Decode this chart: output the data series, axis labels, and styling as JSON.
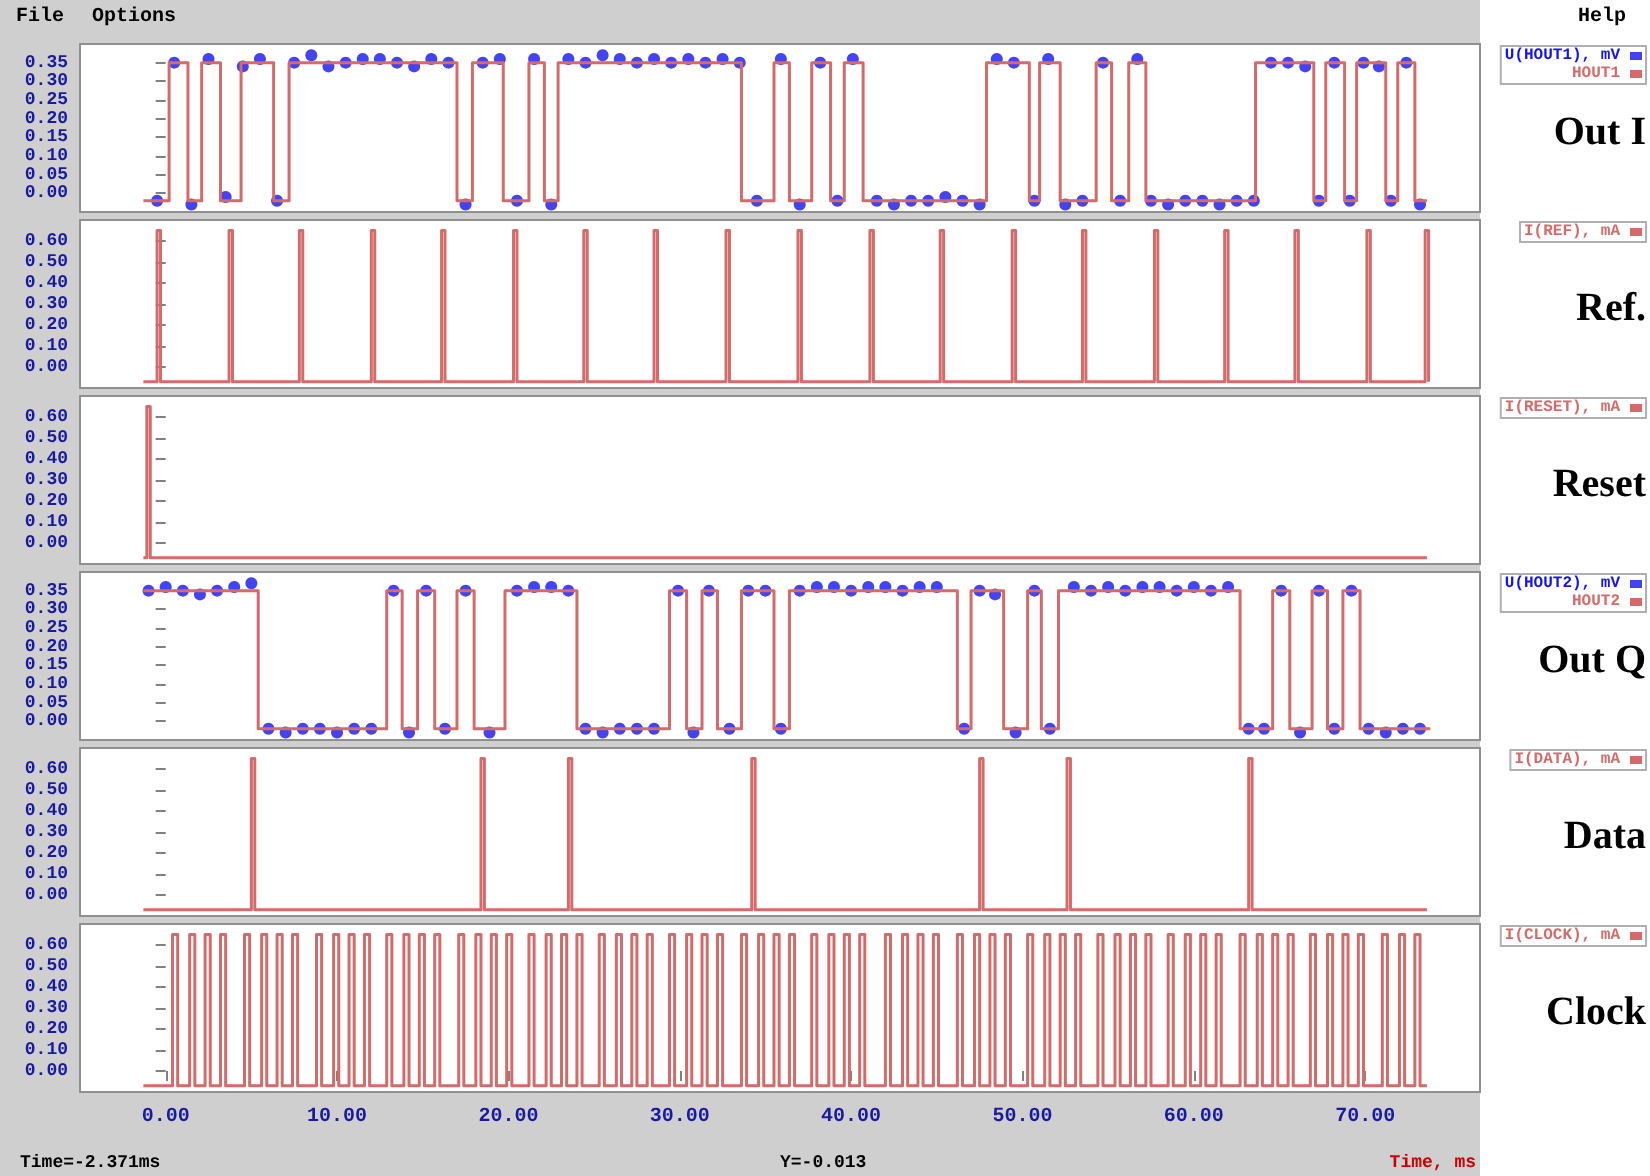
{
  "chart_data": [
    {
      "type": "step",
      "ylabel": "Out I",
      "annotations": [
        "File",
        "Options",
        "Help"
      ],
      "legend": "top right",
      "tick_labels": "y",
      "xlim": [
        -5,
        76.7
      ],
      "ylim": [
        -0.05,
        0.4
      ],
      "yticks": [
        {
          "value": 0,
          "label": "0.00"
        },
        {
          "value": 0.05,
          "label": "0.05"
        },
        {
          "value": 0.1,
          "label": "0.10"
        },
        {
          "value": 0.15,
          "label": "0.15"
        },
        {
          "value": 0.2,
          "label": "0.20"
        },
        {
          "value": 0.25,
          "label": "0.25"
        },
        {
          "value": 0.3,
          "label": "0.30"
        },
        {
          "value": 0.35,
          "label": "0.35"
        }
      ],
      "series": [
        {
          "name": "U(HOUT1), mV",
          "type": "scatter",
          "marker": "circle",
          "color": "#1414ee",
          "x": [
            -0.5,
            0.5,
            1.5,
            2.5,
            3.5,
            4.5,
            5.5,
            6.5,
            7.5,
            8.5,
            9.5,
            10.5,
            11.5,
            12.5,
            13.5,
            14.5,
            15.5,
            16.5,
            17.5,
            18.5,
            19.5,
            20.5,
            21.5,
            22.5,
            23.5,
            24.5,
            25.5,
            26.5,
            27.5,
            28.5,
            29.5,
            30.5,
            31.5,
            32.5,
            33.5,
            34.5,
            35.9,
            37.0,
            38.2,
            39.2,
            40.1,
            41.5,
            42.5,
            43.5,
            44.5,
            45.5,
            46.5,
            47.5,
            48.5,
            49.5,
            50.7,
            51.5,
            52.5,
            53.5,
            54.7,
            55.7,
            56.7,
            57.5,
            58.5,
            59.5,
            60.5,
            61.5,
            62.5,
            63.5,
            64.5,
            65.5,
            66.5,
            67.3,
            68.2,
            69.1,
            69.9,
            70.8,
            71.5,
            72.4,
            73.2
          ],
          "values": [
            -0.02,
            0.35,
            -0.03,
            0.36,
            -0.01,
            0.34,
            0.36,
            -0.02,
            0.35,
            0.37,
            0.34,
            0.35,
            0.36,
            0.36,
            0.35,
            0.34,
            0.36,
            0.35,
            -0.03,
            0.35,
            0.36,
            -0.02,
            0.36,
            -0.03,
            0.36,
            0.35,
            0.37,
            0.36,
            0.35,
            0.36,
            0.35,
            0.36,
            0.35,
            0.36,
            0.35,
            -0.02,
            0.36,
            -0.03,
            0.35,
            -0.02,
            0.36,
            -0.02,
            -0.03,
            -0.02,
            -0.02,
            -0.01,
            -0.02,
            -0.03,
            0.36,
            0.35,
            -0.02,
            0.36,
            -0.03,
            -0.02,
            0.35,
            -0.02,
            0.36,
            -0.02,
            -0.03,
            -0.02,
            -0.02,
            -0.03,
            -0.02,
            -0.02,
            0.35,
            0.35,
            0.34,
            -0.02,
            0.35,
            -0.02,
            0.35,
            0.34,
            -0.02,
            0.35,
            -0.03
          ]
        },
        {
          "name": "HOUT1",
          "color": "#d46a6a",
          "x": [
            -1.3,
            0.2,
            1.3,
            2.1,
            3.2,
            4.4,
            6.3,
            7.2,
            17.0,
            17.9,
            19.7,
            21.2,
            22.1,
            22.9,
            33.6,
            35.5,
            36.4,
            37.7,
            38.8,
            39.6,
            40.7,
            47.9,
            50.4,
            51.0,
            52.2,
            54.3,
            55.2,
            56.2,
            57.2,
            63.6,
            67.0,
            67.7,
            68.8,
            69.5,
            71.2,
            71.9,
            72.9,
            73.6
          ],
          "values": [
            -0.02,
            0.35,
            -0.02,
            0.35,
            -0.02,
            0.35,
            -0.02,
            0.35,
            -0.02,
            0.35,
            -0.02,
            0.35,
            -0.02,
            0.35,
            -0.02,
            0.35,
            -0.02,
            0.35,
            -0.02,
            0.35,
            -0.02,
            0.35,
            -0.02,
            0.35,
            -0.02,
            0.35,
            -0.02,
            0.35,
            -0.02,
            0.35,
            -0.02,
            0.35,
            -0.02,
            0.35,
            -0.02,
            0.35,
            -0.02,
            -0.02
          ]
        }
      ]
    },
    {
      "type": "step",
      "ylabel": "Ref.",
      "legend": "top right",
      "tick_labels": "y",
      "xlim": [
        -5,
        76.7
      ],
      "ylim": [
        -0.1,
        0.7
      ],
      "yticks": [
        {
          "value": 0,
          "label": "0.00"
        },
        {
          "value": 0.1,
          "label": "0.10"
        },
        {
          "value": 0.2,
          "label": "0.20"
        },
        {
          "value": 0.3,
          "label": "0.30"
        },
        {
          "value": 0.4,
          "label": "0.40"
        },
        {
          "value": 0.5,
          "label": "0.50"
        },
        {
          "value": 0.6,
          "label": "0.60"
        }
      ],
      "series": [
        {
          "name": "I(REF), mA",
          "color": "#d46a6a",
          "x": [
            -1.3,
            -0.5,
            -0.3,
            3.7,
            3.9,
            7.8,
            8.0,
            12.0,
            12.2,
            16.1,
            16.3,
            20.3,
            20.5,
            24.4,
            24.6,
            28.5,
            28.7,
            32.7,
            32.9,
            36.9,
            37.1,
            41.1,
            41.3,
            45.2,
            45.4,
            49.4,
            49.6,
            53.5,
            53.7,
            57.7,
            57.9,
            61.8,
            62.0,
            65.9,
            66.1,
            70.1,
            70.3,
            73.5,
            73.7
          ],
          "values": [
            -0.07,
            0.65,
            -0.07,
            0.65,
            -0.07,
            0.65,
            -0.07,
            0.65,
            -0.07,
            0.65,
            -0.07,
            0.65,
            -0.07,
            0.65,
            -0.07,
            0.65,
            -0.07,
            0.65,
            -0.07,
            0.65,
            -0.07,
            0.65,
            -0.07,
            0.65,
            -0.07,
            0.65,
            -0.07,
            0.65,
            -0.07,
            0.65,
            -0.07,
            0.65,
            -0.07,
            0.65,
            -0.07,
            0.65,
            -0.07,
            0.65,
            -0.07
          ]
        }
      ]
    },
    {
      "type": "step",
      "ylabel": "Reset",
      "legend": "top right",
      "tick_labels": "y",
      "xlim": [
        -5,
        76.7
      ],
      "ylim": [
        -0.1,
        0.7
      ],
      "yticks": [
        {
          "value": 0,
          "label": "0.00"
        },
        {
          "value": 0.1,
          "label": "0.10"
        },
        {
          "value": 0.2,
          "label": "0.20"
        },
        {
          "value": 0.3,
          "label": "0.30"
        },
        {
          "value": 0.4,
          "label": "0.40"
        },
        {
          "value": 0.5,
          "label": "0.50"
        },
        {
          "value": 0.6,
          "label": "0.60"
        }
      ],
      "series": [
        {
          "name": "I(RESET), mA",
          "color": "#d46a6a",
          "x": [
            -1.3,
            -1.1,
            -0.9,
            73.6
          ],
          "values": [
            -0.07,
            0.65,
            -0.07,
            -0.07
          ]
        }
      ]
    },
    {
      "type": "step",
      "ylabel": "Out Q",
      "legend": "top right",
      "tick_labels": "y",
      "xlim": [
        -5,
        76.7
      ],
      "ylim": [
        -0.05,
        0.4
      ],
      "yticks": [
        {
          "value": 0,
          "label": "0.00"
        },
        {
          "value": 0.05,
          "label": "0.05"
        },
        {
          "value": 0.1,
          "label": "0.10"
        },
        {
          "value": 0.15,
          "label": "0.15"
        },
        {
          "value": 0.2,
          "label": "0.20"
        },
        {
          "value": 0.25,
          "label": "0.25"
        },
        {
          "value": 0.3,
          "label": "0.30"
        },
        {
          "value": 0.35,
          "label": "0.35"
        }
      ],
      "series": [
        {
          "name": "U(HOUT2), mV",
          "type": "scatter",
          "marker": "circle",
          "color": "#1414ee",
          "x": [
            -1.0,
            0,
            1,
            2,
            3,
            4,
            5,
            6,
            7,
            8,
            9,
            10,
            11,
            12,
            13.3,
            14.2,
            15.2,
            16.3,
            17.5,
            18.9,
            20.5,
            21.5,
            22.5,
            23.5,
            24.5,
            25.5,
            26.5,
            27.5,
            28.5,
            29.9,
            30.8,
            31.7,
            32.9,
            34.0,
            35.0,
            35.9,
            37,
            38,
            39,
            40,
            41,
            42,
            43,
            44,
            45,
            46.6,
            47.5,
            48.4,
            49.6,
            50.7,
            51.6,
            53,
            54,
            55,
            56,
            57,
            58,
            59,
            60,
            61,
            62,
            63.2,
            64.1,
            65.1,
            66.2,
            67.3,
            68.2,
            69.2,
            70.2,
            71.2,
            72.2,
            73.2
          ],
          "values": [
            0.35,
            0.36,
            0.35,
            0.34,
            0.35,
            0.36,
            0.37,
            -0.02,
            -0.03,
            -0.02,
            -0.02,
            -0.03,
            -0.02,
            -0.02,
            0.35,
            -0.03,
            0.35,
            -0.02,
            0.35,
            -0.03,
            0.35,
            0.36,
            0.36,
            0.35,
            -0.02,
            -0.03,
            -0.02,
            -0.02,
            -0.02,
            0.35,
            -0.03,
            0.35,
            -0.02,
            0.35,
            0.35,
            -0.02,
            0.35,
            0.36,
            0.36,
            0.35,
            0.36,
            0.36,
            0.35,
            0.36,
            0.36,
            -0.02,
            0.35,
            0.34,
            -0.03,
            0.35,
            -0.02,
            0.36,
            0.35,
            0.36,
            0.35,
            0.36,
            0.36,
            0.35,
            0.36,
            0.35,
            0.36,
            -0.02,
            -0.02,
            0.35,
            -0.03,
            0.35,
            -0.02,
            0.35,
            -0.02,
            -0.03,
            -0.02,
            -0.02
          ]
        },
        {
          "name": "HOUT2",
          "color": "#d46a6a",
          "x": [
            -1.3,
            5.4,
            12.9,
            13.8,
            14.7,
            15.7,
            17.0,
            18.0,
            19.8,
            24.0,
            29.4,
            30.4,
            31.3,
            32.2,
            33.6,
            35.5,
            36.4,
            46.2,
            47.0,
            48.9,
            50.3,
            51.1,
            52.1,
            62.7,
            64.6,
            65.6,
            66.9,
            67.8,
            68.7,
            69.7,
            73.8
          ],
          "values": [
            0.35,
            -0.02,
            0.35,
            -0.02,
            0.35,
            -0.02,
            0.35,
            -0.02,
            0.35,
            -0.02,
            0.35,
            -0.02,
            0.35,
            -0.02,
            0.35,
            -0.02,
            0.35,
            -0.02,
            0.35,
            -0.02,
            0.35,
            -0.02,
            0.35,
            -0.02,
            0.35,
            -0.02,
            0.35,
            -0.02,
            0.35,
            -0.02,
            -0.02
          ]
        }
      ]
    },
    {
      "type": "step",
      "ylabel": "Data",
      "legend": "top right",
      "tick_labels": "y",
      "xlim": [
        -5,
        76.7
      ],
      "ylim": [
        -0.1,
        0.7
      ],
      "yticks": [
        {
          "value": 0,
          "label": "0.00"
        },
        {
          "value": 0.1,
          "label": "0.10"
        },
        {
          "value": 0.2,
          "label": "0.20"
        },
        {
          "value": 0.3,
          "label": "0.30"
        },
        {
          "value": 0.4,
          "label": "0.40"
        },
        {
          "value": 0.5,
          "label": "0.50"
        },
        {
          "value": 0.6,
          "label": "0.60"
        }
      ],
      "series": [
        {
          "name": "I(DATA), mA",
          "color": "#d46a6a",
          "x": [
            -1.3,
            5.0,
            5.2,
            18.4,
            18.6,
            23.5,
            23.7,
            34.2,
            34.4,
            47.5,
            47.7,
            52.6,
            52.8,
            63.2,
            63.4,
            73.6
          ],
          "values": [
            -0.07,
            0.65,
            -0.07,
            0.65,
            -0.07,
            0.65,
            -0.07,
            0.65,
            -0.07,
            0.65,
            -0.07,
            0.65,
            -0.07,
            0.65,
            -0.07,
            -0.07
          ]
        }
      ]
    },
    {
      "type": "step",
      "ylabel": "Clock",
      "xlabel": "Time, ms",
      "annotations": [
        "Time=-2.371ms",
        "Y=-0.013"
      ],
      "legend": "top right",
      "xlim": [
        -5,
        76.7
      ],
      "xticks": [
        {
          "value": 0,
          "label": "0.00"
        },
        {
          "value": 10,
          "label": "10.00"
        },
        {
          "value": 20,
          "label": "20.00"
        },
        {
          "value": 30,
          "label": "30.00"
        },
        {
          "value": 40,
          "label": "40.00"
        },
        {
          "value": 50,
          "label": "50.00"
        },
        {
          "value": 60,
          "label": "60.00"
        },
        {
          "value": 70,
          "label": "70.00"
        }
      ],
      "ylim": [
        -0.1,
        0.7
      ],
      "yticks": [
        {
          "value": 0,
          "label": "0.00"
        },
        {
          "value": 0.1,
          "label": "0.10"
        },
        {
          "value": 0.2,
          "label": "0.20"
        },
        {
          "value": 0.3,
          "label": "0.30"
        },
        {
          "value": 0.4,
          "label": "0.40"
        },
        {
          "value": 0.5,
          "label": "0.50"
        },
        {
          "value": 0.6,
          "label": "0.60"
        }
      ],
      "series": [
        {
          "name": "I(CLOCK), mA",
          "color": "#d46a6a",
          "x": [
            -1.3,
            0.4,
            0.7,
            1.4,
            1.7,
            2.3,
            2.6,
            3.2,
            3.5,
            4.6,
            4.9,
            5.6,
            5.9,
            6.5,
            6.8,
            7.4,
            7.7,
            8.8,
            9.1,
            9.8,
            10.1,
            10.7,
            11.0,
            11.6,
            11.9,
            12.9,
            13.2,
            13.9,
            14.2,
            14.8,
            15.1,
            15.7,
            16.0,
            17.1,
            17.4,
            18.1,
            18.4,
            19.0,
            19.3,
            19.9,
            20.2,
            21.2,
            21.5,
            22.2,
            22.5,
            23.1,
            23.4,
            24.0,
            24.3,
            25.3,
            25.6,
            26.3,
            26.6,
            27.2,
            27.5,
            28.1,
            28.4,
            29.4,
            29.7,
            30.4,
            30.7,
            31.3,
            31.6,
            32.2,
            32.5,
            33.6,
            33.9,
            34.6,
            34.9,
            35.5,
            35.8,
            36.4,
            36.7,
            37.7,
            38.0,
            38.7,
            39.0,
            39.6,
            39.9,
            40.5,
            40.8,
            42.0,
            42.3,
            43.0,
            43.3,
            43.9,
            44.2,
            44.8,
            45.1,
            46.2,
            46.5,
            47.2,
            47.5,
            48.1,
            48.4,
            49.0,
            49.3,
            50.3,
            50.6,
            51.3,
            51.6,
            52.2,
            52.5,
            53.1,
            53.4,
            54.4,
            54.7,
            55.4,
            55.7,
            56.3,
            56.6,
            57.2,
            57.5,
            58.5,
            58.8,
            59.5,
            59.8,
            60.4,
            60.7,
            61.3,
            61.6,
            62.7,
            63.0,
            63.7,
            64.0,
            64.6,
            64.9,
            65.5,
            65.8,
            66.8,
            67.1,
            67.8,
            68.1,
            68.7,
            69.0,
            69.6,
            69.9,
            71.0,
            71.3,
            72.0,
            72.3,
            72.9,
            73.2,
            73.6
          ],
          "values": [
            -0.07,
            0.65,
            -0.07,
            0.65,
            -0.07,
            0.65,
            -0.07,
            0.65,
            -0.07,
            0.65,
            -0.07,
            0.65,
            -0.07,
            0.65,
            -0.07,
            0.65,
            -0.07,
            0.65,
            -0.07,
            0.65,
            -0.07,
            0.65,
            -0.07,
            0.65,
            -0.07,
            0.65,
            -0.07,
            0.65,
            -0.07,
            0.65,
            -0.07,
            0.65,
            -0.07,
            0.65,
            -0.07,
            0.65,
            -0.07,
            0.65,
            -0.07,
            0.65,
            -0.07,
            0.65,
            -0.07,
            0.65,
            -0.07,
            0.65,
            -0.07,
            0.65,
            -0.07,
            0.65,
            -0.07,
            0.65,
            -0.07,
            0.65,
            -0.07,
            0.65,
            -0.07,
            0.65,
            -0.07,
            0.65,
            -0.07,
            0.65,
            -0.07,
            0.65,
            -0.07,
            0.65,
            -0.07,
            0.65,
            -0.07,
            0.65,
            -0.07,
            0.65,
            -0.07,
            0.65,
            -0.07,
            0.65,
            -0.07,
            0.65,
            -0.07,
            0.65,
            -0.07,
            0.65,
            -0.07,
            0.65,
            -0.07,
            0.65,
            -0.07,
            0.65,
            -0.07,
            0.65,
            -0.07,
            0.65,
            -0.07,
            0.65,
            -0.07,
            0.65,
            -0.07,
            0.65,
            -0.07,
            0.65,
            -0.07,
            0.65,
            -0.07,
            0.65,
            -0.07,
            0.65,
            -0.07,
            0.65,
            -0.07,
            0.65,
            -0.07,
            0.65,
            -0.07,
            0.65,
            -0.07,
            0.65,
            -0.07,
            0.65,
            -0.07,
            0.65,
            -0.07,
            0.65,
            -0.07,
            0.65,
            -0.07,
            0.65,
            -0.07,
            0.65,
            -0.07,
            0.65,
            -0.07,
            0.65,
            -0.07,
            0.65,
            -0.07,
            0.65,
            -0.07,
            0.65,
            -0.07,
            0.65,
            -0.07,
            0.65,
            -0.07,
            -0.07
          ]
        }
      ]
    }
  ]
}
